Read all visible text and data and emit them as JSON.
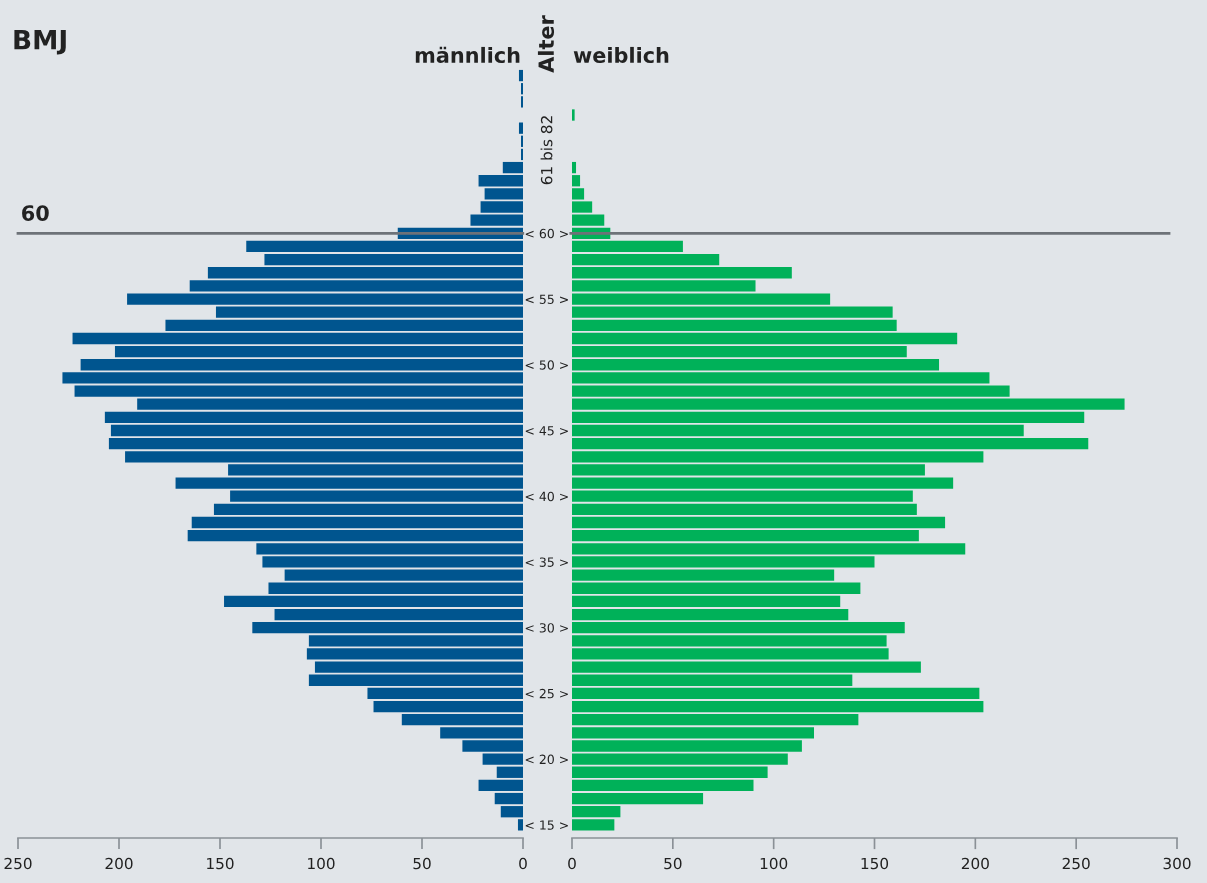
{
  "chart_data": [
    {
      "type": "bar",
      "orientation": "horizontal",
      "title": "BMJ",
      "categories": [
        null,
        null,
        null,
        null,
        null,
        null,
        null,
        null,
        null,
        null,
        null,
        null,
        "< 60 >",
        null,
        null,
        null,
        null,
        "< 55 >",
        null,
        null,
        null,
        null,
        "< 50 >",
        null,
        null,
        null,
        null,
        "< 45 >",
        null,
        null,
        null,
        null,
        "< 40 >",
        null,
        null,
        null,
        null,
        "< 35 >",
        null,
        null,
        null,
        null,
        "< 30 >",
        null,
        null,
        null,
        null,
        "< 25 >",
        null,
        null,
        null,
        null,
        "< 20 >",
        null,
        null,
        null,
        null,
        "< 15 >"
      ],
      "series": [
        {
          "name": "männlich",
          "color": "#00558f",
          "values": [
            2,
            1,
            1,
            0,
            2,
            1,
            1,
            10,
            22,
            19,
            21,
            26,
            62,
            137,
            128,
            156,
            165,
            196,
            152,
            177,
            223,
            202,
            219,
            228,
            222,
            191,
            207,
            204,
            205,
            197,
            146,
            172,
            145,
            153,
            164,
            166,
            132,
            129,
            118,
            126,
            148,
            123,
            134,
            106,
            107,
            103,
            106,
            77,
            74,
            60,
            41,
            30,
            20,
            13,
            22,
            14,
            11,
            2.5
          ]
        }
      ],
      "xlim": [
        250,
        0
      ],
      "xticks": [
        250,
        200,
        150,
        100,
        50,
        0
      ],
      "tick_labels": "x",
      "legend": false,
      "grid": false,
      "ref_lines": [
        {
          "axis": "y",
          "value": "< 60 >",
          "label": "60",
          "color": "#6d7278"
        }
      ]
    },
    {
      "type": "bar",
      "orientation": "horizontal",
      "ylabel": "Alter",
      "categories": [
        null,
        null,
        null,
        null,
        null,
        null,
        null,
        null,
        null,
        null,
        null,
        null,
        "< 60 >",
        null,
        null,
        null,
        null,
        "< 55 >",
        null,
        null,
        null,
        null,
        "< 50 >",
        null,
        null,
        null,
        null,
        "< 45 >",
        null,
        null,
        null,
        null,
        "< 40 >",
        null,
        null,
        null,
        null,
        "< 35 >",
        null,
        null,
        null,
        null,
        "< 30 >",
        null,
        null,
        null,
        null,
        "< 25 >",
        null,
        null,
        null,
        null,
        "< 20 >",
        null,
        null,
        null,
        null,
        "< 15 >"
      ],
      "series": [
        {
          "name": "weiblich",
          "color": "#00b159",
          "values": [
            0,
            0,
            0,
            1.3,
            0,
            0,
            0,
            2,
            4,
            6,
            10,
            16,
            19,
            55,
            73,
            109,
            91,
            128,
            159,
            161,
            191,
            166,
            182,
            207,
            217,
            274,
            254,
            224,
            256,
            204,
            175,
            189,
            169,
            171,
            185,
            172,
            195,
            150,
            130,
            143,
            133,
            137,
            165,
            156,
            157,
            173,
            139,
            202,
            204,
            142,
            120,
            114,
            107,
            97,
            90,
            65,
            24,
            21
          ]
        }
      ],
      "xlim": [
        0,
        300
      ],
      "xticks": [
        0,
        50,
        100,
        150,
        200,
        250,
        300
      ],
      "legend": false,
      "grid": false,
      "ref_lines": [
        {
          "axis": "y",
          "value": "< 60 >",
          "label": null,
          "color": "#6d7278"
        }
      ],
      "annotations": [
        "61 bis 82"
      ]
    }
  ]
}
